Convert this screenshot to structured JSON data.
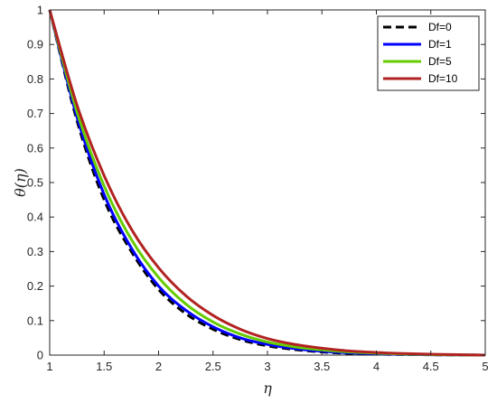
{
  "chart_data": {
    "type": "line",
    "xlabel": "η",
    "ylabel": "θ(η)",
    "xlim": [
      1,
      5
    ],
    "ylim": [
      0,
      1
    ],
    "xticks": [
      "1",
      "1.5",
      "2",
      "2.5",
      "3",
      "3.5",
      "4",
      "4.5",
      "5"
    ],
    "yticks": [
      "0",
      "0.1",
      "0.2",
      "0.3",
      "0.4",
      "0.5",
      "0.6",
      "0.7",
      "0.8",
      "0.9",
      "1"
    ],
    "grid": false,
    "legend_position": "top-right",
    "x": [
      1.0,
      1.25,
      1.5,
      1.75,
      2.0,
      2.25,
      2.5,
      2.75,
      3.0,
      3.25,
      3.5,
      3.75,
      4.0,
      4.25,
      4.5,
      4.75,
      5.0
    ],
    "series": [
      {
        "name": "Df=0",
        "color": "#000000",
        "dash": "dashed",
        "values": [
          1.0,
          0.68,
          0.45,
          0.3,
          0.19,
          0.12,
          0.075,
          0.045,
          0.027,
          0.016,
          0.009,
          0.005,
          0.003,
          0.0015,
          0.001,
          0.0005,
          0.0
        ]
      },
      {
        "name": "Df=1",
        "color": "#0000ff",
        "dash": "solid",
        "values": [
          1.0,
          0.69,
          0.465,
          0.31,
          0.2,
          0.13,
          0.082,
          0.05,
          0.031,
          0.019,
          0.011,
          0.0065,
          0.0038,
          0.002,
          0.001,
          0.0005,
          0.0
        ]
      },
      {
        "name": "Df=5",
        "color": "#66cc00",
        "dash": "solid",
        "values": [
          1.0,
          0.705,
          0.49,
          0.335,
          0.225,
          0.148,
          0.096,
          0.061,
          0.038,
          0.024,
          0.015,
          0.009,
          0.0055,
          0.003,
          0.0015,
          0.0007,
          0.0
        ]
      },
      {
        "name": "Df=10",
        "color": "#b22222",
        "dash": "solid",
        "values": [
          1.0,
          0.725,
          0.52,
          0.365,
          0.253,
          0.172,
          0.115,
          0.075,
          0.048,
          0.031,
          0.02,
          0.012,
          0.0075,
          0.0045,
          0.0025,
          0.0012,
          0.0
        ]
      }
    ]
  }
}
